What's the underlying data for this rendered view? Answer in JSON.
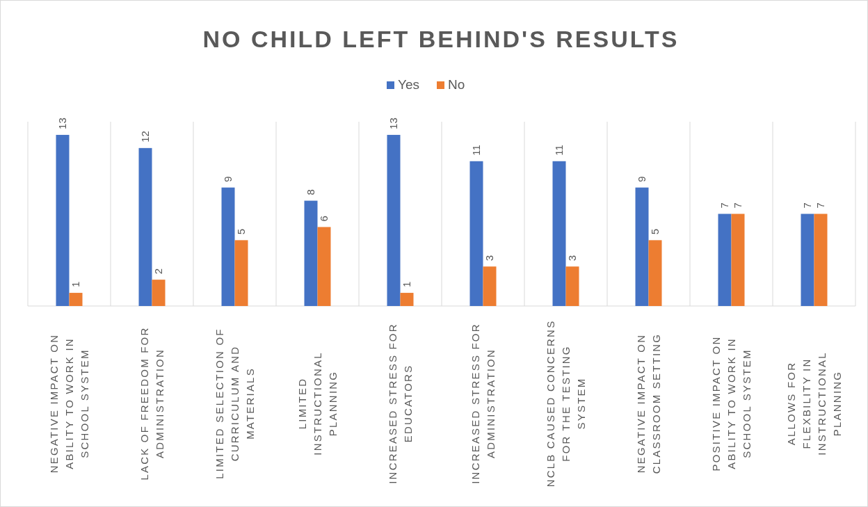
{
  "chart_data": {
    "type": "bar",
    "title": "NO CHILD LEFT BEHIND'S RESULTS",
    "categories": [
      "NEGATIVE IMPACT ON ABILITY TO WORK IN SCHOOL SYSTEM",
      "LACK OF FREEDOM FOR ADMINISTRATION",
      "LIMITED SELECTION OF CURRICULUM AND MATERIALS",
      "LIMITED INSTRUCTIONAL PLANNING",
      "INCREASED STRESS FOR EDUCATORS",
      "INCREASED STRESS FOR ADMINISTRATION",
      "NCLB CAUSED CONCERNS FOR THE TESTING SYSTEM",
      "NEGATIVE IMPACT ON CLASSROOM SETTING",
      "POSITIVE IMPACT ON ABILITY TO WORK IN SCHOOL SYSTEM",
      "ALLOWS FOR FLEXBILITY IN INSTRUCTIONAL PLANNING"
    ],
    "series": [
      {
        "name": "Yes",
        "color": "#4472c4",
        "values": [
          13,
          12,
          9,
          8,
          13,
          11,
          11,
          9,
          7,
          7
        ]
      },
      {
        "name": "No",
        "color": "#ed7d31",
        "values": [
          1,
          2,
          5,
          6,
          1,
          3,
          3,
          5,
          7,
          7
        ]
      }
    ],
    "ylim": [
      0,
      14
    ],
    "tick_labels": "x",
    "data_labels": true,
    "grid": "x",
    "legend": "top"
  }
}
